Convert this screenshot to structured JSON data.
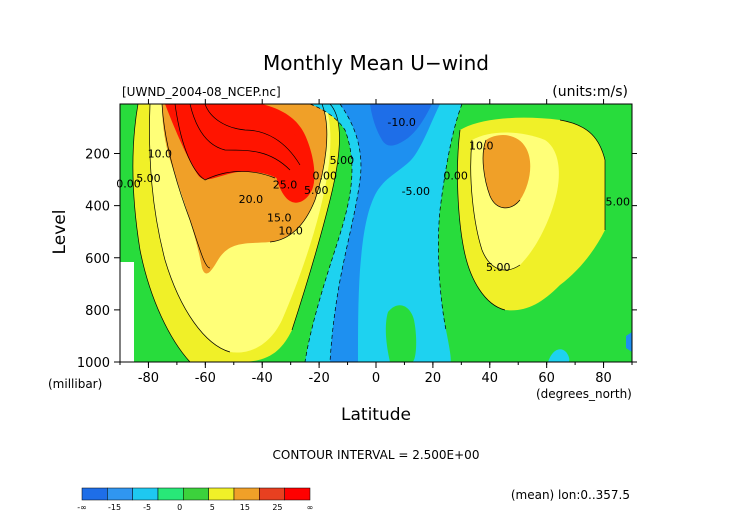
{
  "chart_data": {
    "type": "contour",
    "title": "Monthly Mean U−wind",
    "source_label": "[UWND_2004-08_NCEP.nc]",
    "units_label": "(units:m/s)",
    "xlabel": "Latitude",
    "x_units": "(degrees_north)",
    "ylabel": "Level",
    "y_units": "(millibar)",
    "xlim": [
      -90,
      90
    ],
    "ylim": [
      1000,
      10
    ],
    "x_ticks": [
      -80,
      -60,
      -40,
      -20,
      0,
      20,
      40,
      60,
      80
    ],
    "y_ticks": [
      200,
      400,
      600,
      800,
      1000
    ],
    "contour_interval_text": "CONTOUR INTERVAL = 2.500E+00",
    "footer_note": "(mean) lon:0..357.5",
    "contour_labels": [
      {
        "text": "10.0",
        "x": -76,
        "y": 215
      },
      {
        "text": "5.00",
        "x": -80,
        "y": 310
      },
      {
        "text": "0.00",
        "x": -87,
        "y": 330
      },
      {
        "text": "20.0",
        "x": -44,
        "y": 390
      },
      {
        "text": "25.0",
        "x": -32,
        "y": 335
      },
      {
        "text": "15.0",
        "x": -34,
        "y": 460
      },
      {
        "text": "10.0",
        "x": -30,
        "y": 510
      },
      {
        "text": "5.00",
        "x": -21,
        "y": 355
      },
      {
        "text": "0.00",
        "x": -18,
        "y": 300
      },
      {
        "text": "5.00",
        "x": -12,
        "y": 240
      },
      {
        "text": "-10.0",
        "x": 9,
        "y": 95
      },
      {
        "text": "-5.00",
        "x": 14,
        "y": 360
      },
      {
        "text": "0.00",
        "x": 28,
        "y": 300
      },
      {
        "text": "10.0",
        "x": 37,
        "y": 185
      },
      {
        "text": "5.00",
        "x": 43,
        "y": 650
      },
      {
        "text": "5.00",
        "x": 85,
        "y": 400
      }
    ],
    "colorbar": {
      "tick_labels": [
        "-∞",
        "-15",
        "-5",
        "0",
        "5",
        "15",
        "25",
        "∞"
      ],
      "colors": [
        "#1e6ee8",
        "#3096f0",
        "#1ec8f0",
        "#28e878",
        "#3cd23c",
        "#f0f028",
        "#f0a028",
        "#e84020",
        "#ff0000"
      ]
    },
    "colors": {
      "neg_deep": "#1e78e8",
      "neg_mid": "#1ea8f0",
      "neg_light": "#1ed2f0",
      "zero": "#34e2aa",
      "pos_light": "#28dc3c",
      "pos_mid": "#f0f028",
      "pos_yellow": "#ffff64",
      "pos_orange": "#f0a028",
      "pos_red": "#e82000"
    }
  }
}
